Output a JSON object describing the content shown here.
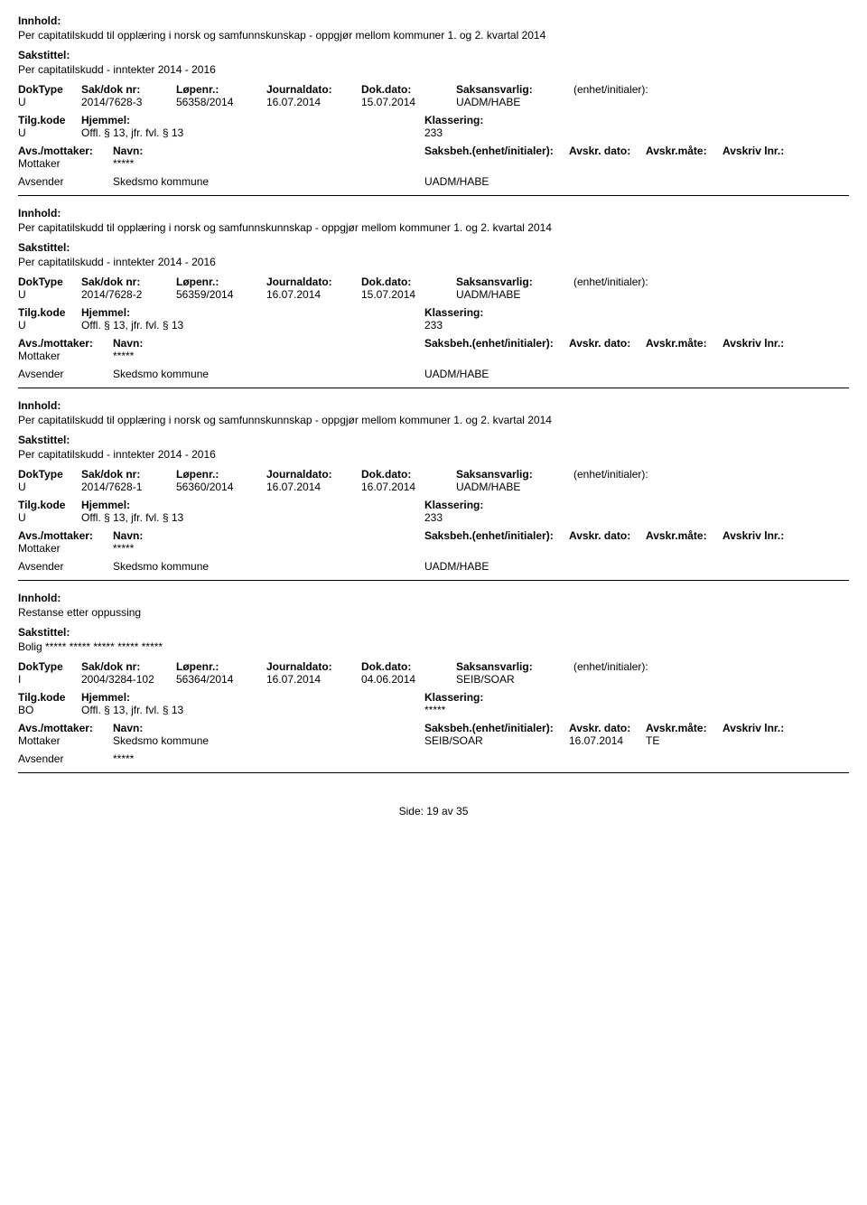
{
  "labels": {
    "innhold": "Innhold:",
    "sakstittel": "Sakstittel:",
    "doktype": "DokType",
    "saknr": "Sak/dok nr:",
    "lopenr": "Løpenr.:",
    "journaldato": "Journaldato:",
    "dokdato": "Dok.dato:",
    "saksansvarlig": "Saksansvarlig:",
    "enhet": "(enhet/initialer):",
    "tilgkode": "Tilg.kode",
    "hjemmel": "Hjemmel:",
    "klassering": "Klassering:",
    "avsmottaker": "Avs./mottaker:",
    "navn": "Navn:",
    "saksbeh": "Saksbeh.(enhet/initialer):",
    "avskrdato": "Avskr. dato:",
    "avskrmate": "Avskr.måte:",
    "avskrivlnr": "Avskriv lnr.:",
    "mottaker": "Mottaker",
    "avsender": "Avsender"
  },
  "records": [
    {
      "innhold": "Per capitatilskudd til opplæring i norsk og samfunnskunskap - oppgjør mellom kommuner 1. og 2. kvartal 2014",
      "sakstittel": "Per capitatilskudd - inntekter 2014 - 2016",
      "doktype": "U",
      "saknr": "2014/7628-3",
      "lopenr": "56358/2014",
      "journaldato": "16.07.2014",
      "dokdato": "15.07.2014",
      "saksansvarlig": "UADM/HABE",
      "enhet": "",
      "tilgkode": "U",
      "hjemmel": "Offl. § 13, jfr. fvl. § 13",
      "klassering": "233",
      "parties": [
        {
          "role": "Mottaker",
          "navn": "*****",
          "saksbeh": "",
          "avskrdato": "",
          "avskrmate": "",
          "avskrivlnr": ""
        },
        {
          "role": "Avsender",
          "navn": "Skedsmo kommune",
          "saksbeh": "UADM/HABE",
          "avskrdato": "",
          "avskrmate": "",
          "avskrivlnr": ""
        }
      ]
    },
    {
      "innhold": "Per capitatilskudd til opplæring i norsk og samfunnskunnskap - oppgjør mellom kommuner 1. og 2. kvartal 2014",
      "sakstittel": "Per capitatilskudd - inntekter 2014 - 2016",
      "doktype": "U",
      "saknr": "2014/7628-2",
      "lopenr": "56359/2014",
      "journaldato": "16.07.2014",
      "dokdato": "15.07.2014",
      "saksansvarlig": "UADM/HABE",
      "enhet": "",
      "tilgkode": "U",
      "hjemmel": "Offl. § 13, jfr. fvl. § 13",
      "klassering": "233",
      "parties": [
        {
          "role": "Mottaker",
          "navn": "*****",
          "saksbeh": "",
          "avskrdato": "",
          "avskrmate": "",
          "avskrivlnr": ""
        },
        {
          "role": "Avsender",
          "navn": "Skedsmo kommune",
          "saksbeh": "UADM/HABE",
          "avskrdato": "",
          "avskrmate": "",
          "avskrivlnr": ""
        }
      ]
    },
    {
      "innhold": "Per capitatilskudd til opplæring i norsk og samfunnskunnskap - oppgjør mellom kommuner 1. og 2. kvartal 2014",
      "sakstittel": "Per capitatilskudd - inntekter 2014 - 2016",
      "doktype": "U",
      "saknr": "2014/7628-1",
      "lopenr": "56360/2014",
      "journaldato": "16.07.2014",
      "dokdato": "16.07.2014",
      "saksansvarlig": "UADM/HABE",
      "enhet": "",
      "tilgkode": "U",
      "hjemmel": "Offl. § 13, jfr. fvl. § 13",
      "klassering": "233",
      "parties": [
        {
          "role": "Mottaker",
          "navn": "*****",
          "saksbeh": "",
          "avskrdato": "",
          "avskrmate": "",
          "avskrivlnr": ""
        },
        {
          "role": "Avsender",
          "navn": "Skedsmo kommune",
          "saksbeh": "UADM/HABE",
          "avskrdato": "",
          "avskrmate": "",
          "avskrivlnr": ""
        }
      ]
    },
    {
      "innhold": "Restanse etter oppussing",
      "sakstittel": "Bolig ***** ***** ***** ***** *****",
      "doktype": "I",
      "saknr": "2004/3284-102",
      "lopenr": "56364/2014",
      "journaldato": "16.07.2014",
      "dokdato": "04.06.2014",
      "saksansvarlig": "SEIB/SOAR",
      "enhet": "",
      "tilgkode": "BO",
      "hjemmel": "Offl. § 13, jfr. fvl. § 13",
      "klassering": "*****",
      "parties": [
        {
          "role": "Mottaker",
          "navn": "Skedsmo kommune",
          "saksbeh": "SEIB/SOAR",
          "avskrdato": "16.07.2014",
          "avskrmate": "TE",
          "avskrivlnr": ""
        },
        {
          "role": "Avsender",
          "navn": "*****",
          "saksbeh": "",
          "avskrdato": "",
          "avskrmate": "",
          "avskrivlnr": ""
        }
      ]
    }
  ],
  "footer": {
    "label": "Side:",
    "current": "19",
    "sep": "av",
    "total": "35"
  }
}
